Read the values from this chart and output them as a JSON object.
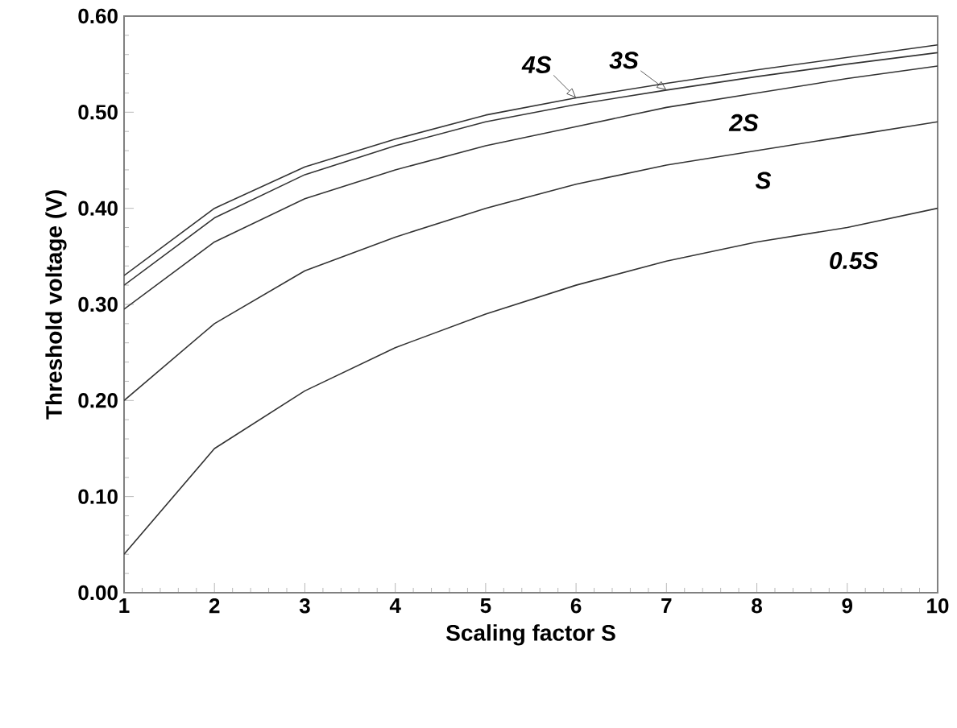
{
  "chart_data": {
    "type": "line",
    "xlabel": "Scaling factor S",
    "ylabel": "Threshold voltage (V)",
    "x": [
      1,
      2,
      3,
      4,
      5,
      6,
      7,
      8,
      9,
      10
    ],
    "series": [
      {
        "name": "4S",
        "color": "#333333",
        "values": [
          0.33,
          0.4,
          0.443,
          0.472,
          0.497,
          0.515,
          0.53,
          0.544,
          0.557,
          0.57
        ]
      },
      {
        "name": "3S",
        "color": "#333333",
        "values": [
          0.32,
          0.39,
          0.435,
          0.465,
          0.49,
          0.508,
          0.523,
          0.537,
          0.55,
          0.562
        ]
      },
      {
        "name": "2S",
        "color": "#333333",
        "values": [
          0.295,
          0.365,
          0.41,
          0.44,
          0.465,
          0.485,
          0.505,
          0.52,
          0.535,
          0.548
        ]
      },
      {
        "name": "S",
        "color": "#333333",
        "values": [
          0.2,
          0.28,
          0.335,
          0.37,
          0.4,
          0.425,
          0.445,
          0.46,
          0.475,
          0.49
        ]
      },
      {
        "name": "0.5S",
        "color": "#333333",
        "values": [
          0.04,
          0.15,
          0.21,
          0.255,
          0.29,
          0.32,
          0.345,
          0.365,
          0.38,
          0.4
        ]
      }
    ],
    "xlim": [
      1,
      10
    ],
    "xticks": [
      1,
      2,
      3,
      4,
      5,
      6,
      7,
      8,
      9,
      10
    ],
    "ylim": [
      0,
      0.6
    ],
    "yticks": [
      {
        "value": 0,
        "label": "0.00"
      },
      {
        "value": 0.1,
        "label": "0.10"
      },
      {
        "value": 0.2,
        "label": "0.20"
      },
      {
        "value": 0.3,
        "label": "0.30"
      },
      {
        "value": 0.4,
        "label": "0.40"
      },
      {
        "value": 0.5,
        "label": "0.50"
      },
      {
        "value": 0.6,
        "label": "0.60"
      }
    ],
    "grid": false,
    "legend": false,
    "marker": "none",
    "line_style": "solid"
  }
}
